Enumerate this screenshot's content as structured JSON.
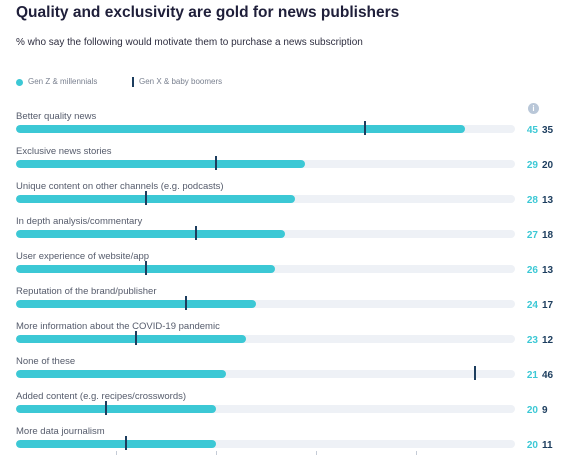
{
  "title": "Quality and exclusivity are gold for news publishers",
  "subtitle": "% who say the following would motivate them to purchase a news subscription",
  "colors": {
    "genz": "#3cc8d5",
    "genx": "#1c3d5e",
    "track": "#eef1f6"
  },
  "chart_data": {
    "type": "bar",
    "title": "Quality and exclusivity are gold for news publishers",
    "subtitle": "% who say the following would motivate them to purchase a news subscription",
    "xlim": [
      0,
      50
    ],
    "legend": "top-left",
    "categories": [
      "Better quality news",
      "Exclusive news stories",
      "Unique content on other channels (e.g. podcasts)",
      "In depth analysis/commentary",
      "User experience of website/app",
      "Reputation of the brand/publisher",
      "More information about the COVID-19 pandemic",
      "None of these",
      "Added content (e.g. recipes/crosswords)",
      "More data journalism"
    ],
    "series": [
      {
        "name": "Gen Z & millennials",
        "style": "bar",
        "values": [
          45,
          29,
          28,
          27,
          26,
          24,
          23,
          21,
          20,
          20
        ]
      },
      {
        "name": "Gen X & baby boomers",
        "style": "marker",
        "values": [
          35,
          20,
          13,
          18,
          13,
          17,
          12,
          46,
          9,
          11
        ]
      }
    ]
  }
}
